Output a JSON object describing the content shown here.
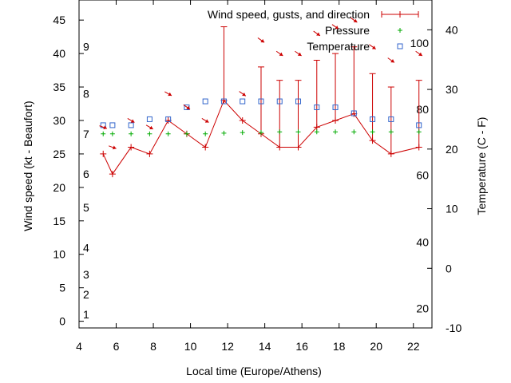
{
  "chart_data": {
    "type": "line",
    "title": "",
    "xlabel": "Local time (Europe/Athens)",
    "ylabel": "Wind speed (kt - Beaufort)",
    "y2label": "Temperature (C - F)",
    "xlim": [
      4,
      23
    ],
    "ylim": [
      -1,
      48
    ],
    "y2lim": [
      -10,
      45
    ],
    "x_ticks": [
      4,
      6,
      8,
      10,
      12,
      14,
      16,
      18,
      20,
      22
    ],
    "y_ticks": [
      0,
      5,
      10,
      15,
      20,
      25,
      30,
      35,
      40,
      45
    ],
    "y2_ticks": [
      -10,
      0,
      10,
      20,
      30,
      40
    ],
    "beaufort_labels": [
      {
        "label": "1",
        "y": 1
      },
      {
        "label": "2",
        "y": 4
      },
      {
        "label": "3",
        "y": 7
      },
      {
        "label": "4",
        "y": 11
      },
      {
        "label": "5",
        "y": 17
      },
      {
        "label": "6",
        "y": 22
      },
      {
        "label": "7",
        "y": 28
      },
      {
        "label": "8",
        "y": 34
      },
      {
        "label": "9",
        "y": 41
      }
    ],
    "fahrenheit_labels": [
      {
        "label": "20",
        "y2": -6.7
      },
      {
        "label": "40",
        "y2": 4.4
      },
      {
        "label": "60",
        "y2": 15.6
      },
      {
        "label": "80",
        "y2": 26.7
      },
      {
        "label": "100",
        "y2": 37.8
      }
    ],
    "grid": false,
    "legend_position": "top-right",
    "series": [
      {
        "name": "Wind speed, gusts, and direction",
        "color": "#cc0000",
        "x": [
          5.3,
          5.8,
          6.8,
          7.8,
          8.8,
          9.8,
          10.8,
          11.8,
          12.8,
          13.8,
          14.8,
          15.8,
          16.8,
          17.8,
          18.8,
          19.8,
          20.8,
          22.3
        ],
        "values": [
          25,
          22,
          26,
          25,
          30,
          28,
          26,
          33,
          30,
          28,
          26,
          26,
          29,
          30,
          31,
          27,
          25,
          26
        ],
        "gusts": [
          null,
          null,
          null,
          null,
          null,
          null,
          null,
          44,
          null,
          38,
          36,
          36,
          39,
          40,
          41,
          37,
          35,
          36
        ]
      },
      {
        "name": "Pressure",
        "color": "#00aa00",
        "x": [
          5.3,
          5.8,
          6.8,
          7.8,
          8.8,
          9.8,
          10.8,
          11.8,
          12.8,
          13.8,
          14.8,
          15.8,
          16.8,
          17.8,
          18.8,
          19.8,
          20.8,
          22.3
        ],
        "values": [
          28,
          28,
          28,
          28,
          28,
          28,
          28,
          28.1,
          28.2,
          28.2,
          28.3,
          28.3,
          28.3,
          28.3,
          28.3,
          28.3,
          28.3,
          28.3
        ]
      },
      {
        "name": "Temperature",
        "color": "#3366cc",
        "axis": "y2",
        "x": [
          5.3,
          5.8,
          6.8,
          7.8,
          8.8,
          9.8,
          10.8,
          11.8,
          12.8,
          13.8,
          14.8,
          15.8,
          16.8,
          17.8,
          18.8,
          19.8,
          20.8,
          22.3
        ],
        "values": [
          24,
          24,
          24,
          25,
          25,
          27,
          28,
          28,
          28,
          28,
          28,
          28,
          27,
          27,
          26,
          25,
          25,
          24
        ]
      }
    ],
    "wind_direction_arrows": {
      "x": [
        5.3,
        5.8,
        6.8,
        7.8,
        8.8,
        9.8,
        10.8,
        11.8,
        12.8,
        13.8,
        14.8,
        15.8,
        16.8,
        17.8,
        18.8,
        19.8,
        20.8,
        22.3
      ],
      "y": [
        29,
        26,
        30,
        29,
        34,
        32,
        30,
        49,
        34,
        42,
        40,
        40,
        43,
        44,
        45,
        41,
        39,
        40
      ],
      "angle_deg": [
        20,
        20,
        30,
        30,
        30,
        35,
        30,
        30,
        35,
        35,
        35,
        35,
        35,
        35,
        35,
        35,
        35,
        35
      ]
    }
  }
}
